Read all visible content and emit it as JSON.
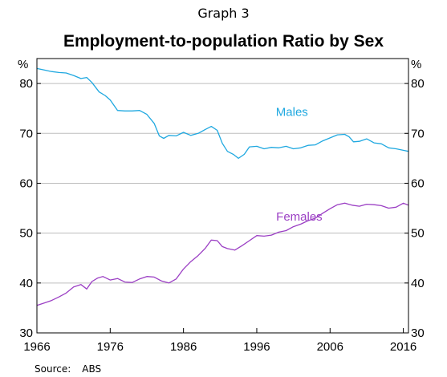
{
  "header": {
    "graph_label": "Graph 3"
  },
  "footer": {
    "source_label": "Source:",
    "source_value": "ABS"
  },
  "chart_data": {
    "type": "line",
    "title": "Employment-to-population Ratio by Sex",
    "xlabel": "",
    "ylabel": "%",
    "ylabel_right": "%",
    "xlim": [
      1966,
      2016.7
    ],
    "ylim": [
      30,
      85
    ],
    "x_ticks": [
      1966,
      1976,
      1986,
      1996,
      2006,
      2016
    ],
    "y_ticks": [
      30,
      40,
      50,
      60,
      70,
      80
    ],
    "grid": "horizontal",
    "series": [
      {
        "name": "Males",
        "color": "#1fa8e0",
        "x": [
          1966.0,
          1967.0,
          1968.0,
          1969.0,
          1970.0,
          1971.0,
          1972.0,
          1972.8,
          1973.5,
          1974.5,
          1975.3,
          1976.0,
          1977.0,
          1978.0,
          1979.0,
          1980.0,
          1981.0,
          1982.0,
          1982.7,
          1983.3,
          1984.0,
          1985.0,
          1986.0,
          1987.0,
          1988.0,
          1989.0,
          1989.8,
          1990.6,
          1991.3,
          1992.0,
          1992.8,
          1993.5,
          1994.3,
          1995.0,
          1996.0,
          1997.0,
          1998.0,
          1999.0,
          2000.0,
          2001.0,
          2002.0,
          2003.0,
          2004.0,
          2005.0,
          2006.0,
          2007.0,
          2008.0,
          2008.6,
          2009.2,
          2010.0,
          2011.0,
          2012.0,
          2013.0,
          2014.0,
          2015.0,
          2016.0,
          2016.7
        ],
        "y": [
          83.0,
          82.7,
          82.4,
          82.2,
          82.1,
          81.6,
          81.0,
          81.2,
          80.2,
          78.3,
          77.6,
          76.7,
          74.6,
          74.5,
          74.5,
          74.6,
          73.8,
          72.0,
          69.5,
          69.0,
          69.6,
          69.5,
          70.2,
          69.6,
          70.0,
          70.8,
          71.4,
          70.6,
          68.0,
          66.4,
          65.8,
          65.0,
          65.8,
          67.3,
          67.4,
          66.9,
          67.2,
          67.1,
          67.4,
          66.9,
          67.1,
          67.6,
          67.7,
          68.5,
          69.1,
          69.7,
          69.8,
          69.3,
          68.3,
          68.4,
          68.9,
          68.1,
          67.9,
          67.1,
          66.9,
          66.6,
          66.4
        ]
      },
      {
        "name": "Females",
        "color": "#9b3fc4",
        "x": [
          1966.0,
          1967.0,
          1968.0,
          1969.0,
          1970.0,
          1971.0,
          1972.0,
          1972.8,
          1973.5,
          1974.3,
          1975.0,
          1976.0,
          1977.0,
          1978.0,
          1979.0,
          1980.0,
          1981.0,
          1982.0,
          1983.0,
          1984.0,
          1985.0,
          1986.0,
          1987.0,
          1988.0,
          1989.0,
          1989.8,
          1990.6,
          1991.3,
          1992.0,
          1993.0,
          1994.0,
          1995.0,
          1996.0,
          1997.0,
          1998.0,
          1999.0,
          2000.0,
          2001.0,
          2002.0,
          2003.0,
          2004.0,
          2005.0,
          2006.0,
          2007.0,
          2008.0,
          2009.0,
          2010.0,
          2011.0,
          2012.0,
          2013.0,
          2014.0,
          2015.0,
          2016.0,
          2016.7
        ],
        "y": [
          35.5,
          36.0,
          36.5,
          37.2,
          38.0,
          39.2,
          39.7,
          38.8,
          40.3,
          41.0,
          41.3,
          40.6,
          40.9,
          40.2,
          40.1,
          40.8,
          41.3,
          41.2,
          40.4,
          40.0,
          40.8,
          42.8,
          44.3,
          45.5,
          47.0,
          48.6,
          48.5,
          47.3,
          46.9,
          46.6,
          47.5,
          48.5,
          49.5,
          49.4,
          49.6,
          50.2,
          50.5,
          51.3,
          51.8,
          52.5,
          53.0,
          54.0,
          54.9,
          55.7,
          56.0,
          55.6,
          55.4,
          55.8,
          55.7,
          55.5,
          55.0,
          55.2,
          56.0,
          55.6
        ]
      }
    ],
    "annotations": [
      {
        "text": "Males",
        "x": 2000.8,
        "y": 73.5,
        "color": "#1fa8e0"
      },
      {
        "text": "Females",
        "x": 2001.8,
        "y": 52.5,
        "color": "#9b3fc4"
      }
    ]
  }
}
